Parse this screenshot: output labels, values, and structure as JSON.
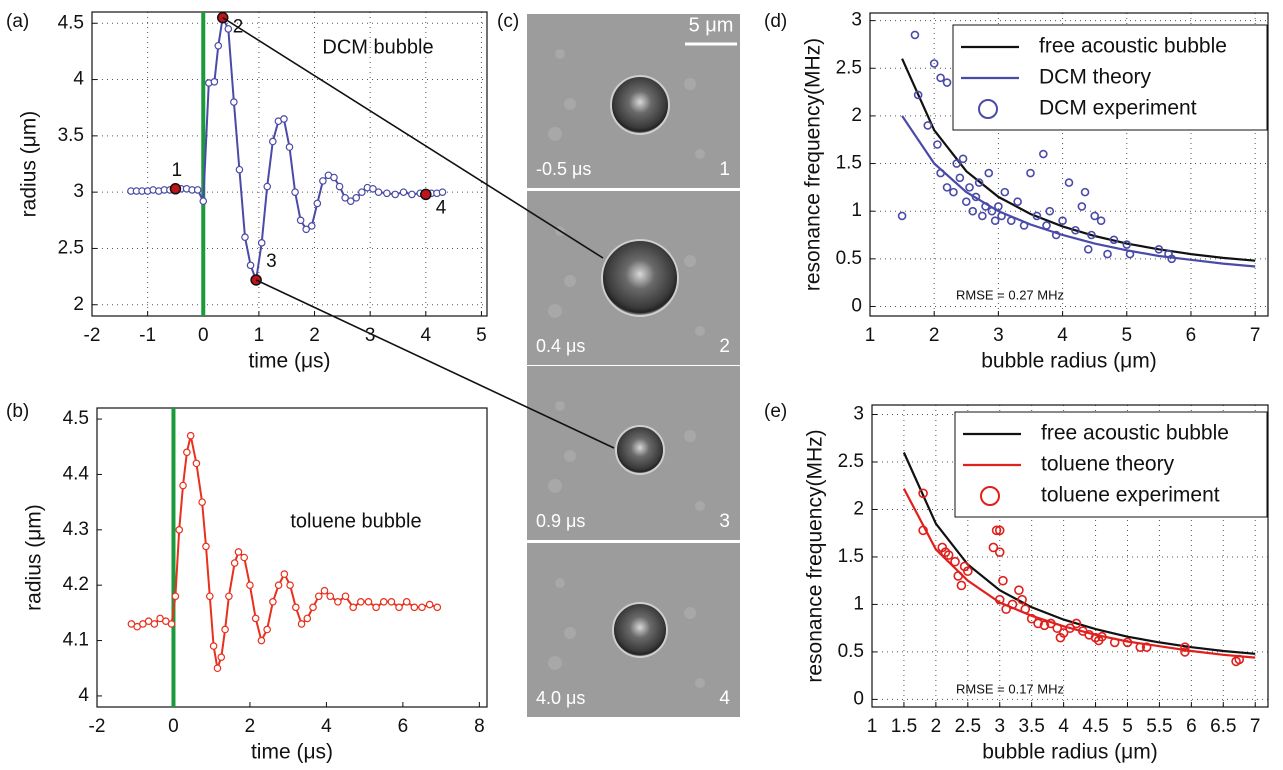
{
  "chart_data": [
    {
      "type": "line",
      "panel_label": "(a)",
      "annotation": "DCM bubble",
      "x_label": "time (μs)",
      "y_label": "radius (μm)",
      "xlim": [
        -2,
        5.1
      ],
      "xticks": [
        -2,
        -1,
        0,
        1,
        2,
        3,
        4,
        5
      ],
      "ylim": [
        1.9,
        4.6
      ],
      "yticks": [
        2,
        2.5,
        3,
        3.5,
        4,
        4.5
      ],
      "grid": true,
      "vline": {
        "x": 0,
        "color": "#1a9a3a"
      },
      "series": [
        {
          "color": "#4a4aa8",
          "marker": true,
          "x": [
            -1.3,
            -1.2,
            -1.1,
            -1,
            -0.9,
            -0.8,
            -0.7,
            -0.6,
            -0.5,
            -0.4,
            -0.3,
            -0.2,
            -0.1,
            0,
            0.1,
            0.2,
            0.27,
            0.35,
            0.45,
            0.55,
            0.65,
            0.75,
            0.85,
            0.95,
            1.05,
            1.15,
            1.25,
            1.35,
            1.45,
            1.55,
            1.65,
            1.75,
            1.85,
            1.95,
            2.05,
            2.15,
            2.25,
            2.35,
            2.45,
            2.55,
            2.65,
            2.75,
            2.85,
            2.95,
            3.05,
            3.15,
            3.3,
            3.45,
            3.6,
            3.75,
            3.9,
            4.0,
            4.1,
            4.2,
            4.3
          ],
          "values": [
            3.01,
            3.01,
            3.01,
            3.01,
            3.02,
            3.01,
            3.02,
            3.02,
            3.03,
            3.03,
            3.03,
            3.02,
            3.02,
            2.92,
            3.97,
            3.98,
            4.3,
            4.55,
            4.45,
            3.8,
            3.2,
            2.6,
            2.35,
            2.22,
            2.55,
            3.05,
            3.45,
            3.63,
            3.65,
            3.4,
            3.0,
            2.75,
            2.67,
            2.7,
            2.9,
            3.1,
            3.15,
            3.13,
            3.05,
            2.95,
            2.92,
            2.95,
            3.0,
            3.04,
            3.03,
            3.0,
            2.99,
            2.98,
            3.0,
            2.98,
            2.99,
            2.98,
            2.99,
            2.99,
            3.0
          ]
        }
      ],
      "points": [
        {
          "label": "1",
          "x": -0.5,
          "y": 3.03
        },
        {
          "label": "2",
          "x": 0.35,
          "y": 4.55
        },
        {
          "label": "3",
          "x": 0.95,
          "y": 2.22
        },
        {
          "label": "4",
          "x": 4.0,
          "y": 2.98
        }
      ],
      "point_color": "#c0141c"
    },
    {
      "type": "line",
      "panel_label": "(b)",
      "annotation": "toluene bubble",
      "x_label": "time (μs)",
      "y_label": "radius (μm)",
      "xlim": [
        -2,
        8.2
      ],
      "xticks": [
        -2,
        0,
        2,
        4,
        6,
        8
      ],
      "ylim": [
        3.98,
        4.52
      ],
      "yticks": [
        4,
        4.1,
        4.2,
        4.3,
        4.4,
        4.5
      ],
      "grid": false,
      "vline": {
        "x": 0,
        "color": "#1a9a3a"
      },
      "series": [
        {
          "color": "#e8301c",
          "marker": true,
          "x": [
            -1.1,
            -0.95,
            -0.8,
            -0.65,
            -0.5,
            -0.35,
            -0.2,
            -0.05,
            0.05,
            0.15,
            0.25,
            0.35,
            0.45,
            0.6,
            0.75,
            0.85,
            0.95,
            1.05,
            1.15,
            1.25,
            1.35,
            1.45,
            1.6,
            1.7,
            1.85,
            2.0,
            2.15,
            2.3,
            2.45,
            2.6,
            2.75,
            2.9,
            3.05,
            3.2,
            3.35,
            3.5,
            3.65,
            3.8,
            3.95,
            4.1,
            4.3,
            4.5,
            4.7,
            4.9,
            5.1,
            5.3,
            5.5,
            5.7,
            5.9,
            6.1,
            6.3,
            6.5,
            6.7,
            6.9
          ],
          "values": [
            4.13,
            4.125,
            4.13,
            4.135,
            4.13,
            4.14,
            4.135,
            4.13,
            4.18,
            4.3,
            4.38,
            4.44,
            4.47,
            4.42,
            4.35,
            4.27,
            4.18,
            4.09,
            4.05,
            4.07,
            4.12,
            4.18,
            4.24,
            4.26,
            4.25,
            4.2,
            4.14,
            4.1,
            4.12,
            4.17,
            4.2,
            4.22,
            4.2,
            4.16,
            4.13,
            4.14,
            4.16,
            4.18,
            4.19,
            4.18,
            4.17,
            4.18,
            4.16,
            4.17,
            4.17,
            4.16,
            4.17,
            4.17,
            4.16,
            4.17,
            4.16,
            4.16,
            4.165,
            4.16
          ]
        }
      ]
    },
    {
      "type": "scatter",
      "panel_label": "(d)",
      "annotation": "RMSE = 0.27 MHz",
      "x_label": "bubble radius (μm)",
      "y_label": "resonance frequency(MHz)",
      "xlim": [
        1,
        7.2
      ],
      "xticks": [
        1,
        2,
        3,
        4,
        5,
        6,
        7
      ],
      "ylim": [
        -0.1,
        3.08
      ],
      "yticks": [
        0,
        0.5,
        1,
        1.5,
        2,
        2.5,
        3
      ],
      "grid": true,
      "legend": "upper right",
      "series": [
        {
          "name": "free acoustic bubble",
          "color": "#111111",
          "style": "line",
          "x": [
            1.5,
            2,
            2.5,
            3,
            3.5,
            4,
            4.5,
            5,
            5.5,
            6,
            6.5,
            7
          ],
          "values": [
            2.6,
            1.85,
            1.42,
            1.15,
            0.97,
            0.84,
            0.74,
            0.66,
            0.6,
            0.55,
            0.51,
            0.48
          ]
        },
        {
          "name": "DCM theory",
          "color": "#4a4aa8",
          "style": "line",
          "x": [
            1.5,
            2,
            2.5,
            3,
            3.5,
            4,
            4.5,
            5,
            5.5,
            6,
            6.5,
            7
          ],
          "values": [
            2.0,
            1.5,
            1.2,
            1.0,
            0.86,
            0.75,
            0.66,
            0.59,
            0.53,
            0.49,
            0.45,
            0.42
          ]
        },
        {
          "name": "DCM experiment",
          "color": "#4a4aa8",
          "style": "marker",
          "size": 3.5,
          "x": [
            1.5,
            1.7,
            1.75,
            1.9,
            2.0,
            2.05,
            2.1,
            2.2,
            2.1,
            2.2,
            2.3,
            2.35,
            2.4,
            2.45,
            2.5,
            2.55,
            2.6,
            2.65,
            2.7,
            2.75,
            2.8,
            2.85,
            2.9,
            2.95,
            3.0,
            3.05,
            3.1,
            3.2,
            3.3,
            3.4,
            3.5,
            3.6,
            3.7,
            3.75,
            3.8,
            3.9,
            4.0,
            4.1,
            4.2,
            4.3,
            4.35,
            4.4,
            4.45,
            4.5,
            4.6,
            4.7,
            4.8,
            5.0,
            5.05,
            5.5,
            5.65,
            5.7
          ],
          "values": [
            0.95,
            2.85,
            2.22,
            1.9,
            2.55,
            1.7,
            2.4,
            2.35,
            1.4,
            1.25,
            1.2,
            1.5,
            1.35,
            1.55,
            1.1,
            1.25,
            1.0,
            1.15,
            1.3,
            0.95,
            1.05,
            1.4,
            1.0,
            0.9,
            1.05,
            0.95,
            1.2,
            0.9,
            1.1,
            0.85,
            1.4,
            0.95,
            1.6,
            0.85,
            1.0,
            0.75,
            0.9,
            1.3,
            0.8,
            1.05,
            1.2,
            0.6,
            0.75,
            0.95,
            0.9,
            0.55,
            0.7,
            0.65,
            0.55,
            0.6,
            0.55,
            0.5
          ]
        }
      ]
    },
    {
      "type": "scatter",
      "panel_label": "(e)",
      "annotation": "RMSE = 0.17 MHz",
      "x_label": "bubble radius (μm)",
      "y_label": "resonance frequency(MHz)",
      "xlim": [
        1,
        7.2
      ],
      "xticks": [
        1,
        1.5,
        2,
        2.5,
        3,
        3.5,
        4,
        4.5,
        5,
        5.5,
        6,
        6.5,
        7
      ],
      "ylim": [
        -0.08,
        3.1
      ],
      "yticks": [
        0,
        0.5,
        1,
        1.5,
        2,
        2.5,
        3
      ],
      "grid": true,
      "legend": "upper right",
      "series": [
        {
          "name": "free acoustic bubble",
          "color": "#111111",
          "style": "line",
          "x": [
            1.5,
            2,
            2.5,
            3,
            3.5,
            4,
            4.5,
            5,
            5.5,
            6,
            6.5,
            7
          ],
          "values": [
            2.6,
            1.85,
            1.42,
            1.15,
            0.97,
            0.84,
            0.74,
            0.66,
            0.6,
            0.55,
            0.51,
            0.48
          ]
        },
        {
          "name": "toluene theory",
          "color": "#e0201c",
          "style": "line",
          "x": [
            1.5,
            2,
            2.5,
            3,
            3.5,
            4,
            4.5,
            5,
            5.5,
            6,
            6.5,
            7
          ],
          "values": [
            2.22,
            1.58,
            1.25,
            1.02,
            0.88,
            0.77,
            0.68,
            0.61,
            0.56,
            0.51,
            0.47,
            0.44
          ]
        },
        {
          "name": "toluene experiment",
          "color": "#e0201c",
          "style": "marker",
          "size": 4,
          "x": [
            1.8,
            1.8,
            2.1,
            2.15,
            2.2,
            2.3,
            2.35,
            2.4,
            2.45,
            2.5,
            2.9,
            2.95,
            3.0,
            3.0,
            3.0,
            3.05,
            3.1,
            3.2,
            3.3,
            3.35,
            3.4,
            3.5,
            3.6,
            3.7,
            3.8,
            3.9,
            3.95,
            4.0,
            4.1,
            4.2,
            4.3,
            4.4,
            4.5,
            4.55,
            4.6,
            4.8,
            5.0,
            5.2,
            5.3,
            5.9,
            5.9,
            6.7,
            6.75
          ],
          "values": [
            2.17,
            1.78,
            1.6,
            1.55,
            1.52,
            1.45,
            1.3,
            1.2,
            1.4,
            1.35,
            1.6,
            1.78,
            1.78,
            1.55,
            1.05,
            1.25,
            0.95,
            1.0,
            1.15,
            1.05,
            0.95,
            0.85,
            0.8,
            0.78,
            0.8,
            0.75,
            0.65,
            0.7,
            0.75,
            0.8,
            0.72,
            0.68,
            0.65,
            0.62,
            0.66,
            0.6,
            0.6,
            0.55,
            0.55,
            0.5,
            0.55,
            0.4,
            0.42
          ]
        }
      ]
    }
  ],
  "images": {
    "panel_label": "(c)",
    "scale_bar": "5 μm",
    "frames": [
      {
        "time": "-0.5 μs",
        "index": "1"
      },
      {
        "time": "0.4 μs",
        "index": "2"
      },
      {
        "time": "0.9 μs",
        "index": "3"
      },
      {
        "time": "4.0 μs",
        "index": "4"
      }
    ]
  }
}
